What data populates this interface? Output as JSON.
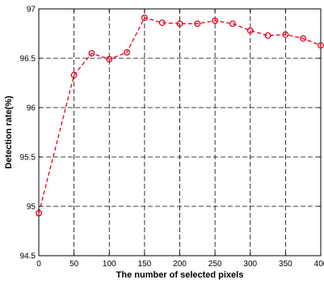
{
  "chart_data": {
    "type": "line",
    "title": "",
    "xlabel": "The number of selected pixels",
    "ylabel": "Detection rate(%)",
    "xlim": [
      0,
      400
    ],
    "ylim": [
      94.5,
      97
    ],
    "x_ticks": [
      0,
      50,
      100,
      150,
      200,
      250,
      300,
      350,
      400
    ],
    "y_ticks": [
      94.5,
      95,
      95.5,
      96,
      96.5,
      97
    ],
    "x_tick_labels": [
      "0",
      "50",
      "100",
      "150",
      "200",
      "250",
      "300",
      "350",
      "400"
    ],
    "y_tick_labels": [
      "94.5",
      "95",
      "95.5",
      "96",
      "96.5",
      "97"
    ],
    "grid": true,
    "legend": "none",
    "series": [
      {
        "color": "#e8001c",
        "line_style": "dashed",
        "marker": "circle",
        "x": [
          0,
          50,
          75,
          100,
          125,
          150,
          175,
          200,
          225,
          250,
          275,
          300,
          325,
          350,
          375,
          400
        ],
        "y": [
          94.93,
          96.33,
          96.55,
          96.49,
          96.56,
          96.91,
          96.86,
          96.85,
          96.85,
          96.88,
          96.85,
          96.78,
          96.73,
          96.74,
          96.7,
          96.63
        ]
      }
    ]
  }
}
